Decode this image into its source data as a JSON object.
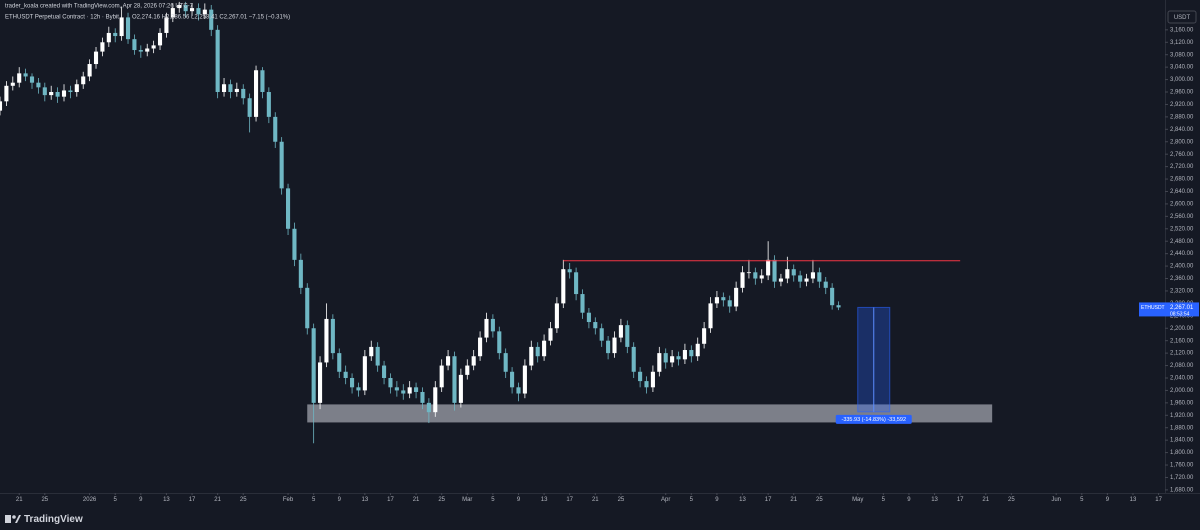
{
  "header": {
    "author_line": "trader_koala created with TradingView.com, Apr 28, 2026 07:26 UTC-7",
    "symbol_line": "ETHUSDT Perpetual Contract · 12h · Bybit",
    "ohlc_line": "O2,274.16 H2,286.56 L2,258.41 C2,267.01 −7.15 (−0.31%)"
  },
  "footer": {
    "brand": "TradingView"
  },
  "chart_data": {
    "type": "candlestick",
    "currency": "USDT",
    "up_color": "#ffffff",
    "down_color": "#6fb7c4",
    "grid": false,
    "xlim": [
      "2025-12-18",
      "2026-06-18"
    ],
    "ylim": [
      1670,
      3256
    ],
    "x": [
      "2025-12-18",
      "2025-12-19",
      "2025-12-20",
      "2025-12-21",
      "2025-12-22",
      "2025-12-23",
      "2025-12-24",
      "2025-12-25",
      "2025-12-26",
      "2025-12-27",
      "2025-12-28",
      "2025-12-29",
      "2025-12-30",
      "2025-12-31",
      "2026-01-01",
      "2026-01-02",
      "2026-01-03",
      "2026-01-04",
      "2026-01-05",
      "2026-01-06",
      "2026-01-07",
      "2026-01-08",
      "2026-01-09",
      "2026-01-10",
      "2026-01-11",
      "2026-01-12",
      "2026-01-13",
      "2026-01-14",
      "2026-01-15",
      "2026-01-16",
      "2026-01-17",
      "2026-01-18",
      "2026-01-19",
      "2026-01-20",
      "2026-01-21",
      "2026-01-22",
      "2026-01-23",
      "2026-01-24",
      "2026-01-25",
      "2026-01-26",
      "2026-01-27",
      "2026-01-28",
      "2026-01-29",
      "2026-01-30",
      "2026-01-31",
      "2026-02-01",
      "2026-02-02",
      "2026-02-03",
      "2026-02-04",
      "2026-02-05",
      "2026-02-06",
      "2026-02-07",
      "2026-02-08",
      "2026-02-09",
      "2026-02-10",
      "2026-02-11",
      "2026-02-12",
      "2026-02-13",
      "2026-02-14",
      "2026-02-15",
      "2026-02-16",
      "2026-02-17",
      "2026-02-18",
      "2026-02-19",
      "2026-02-20",
      "2026-02-21",
      "2026-02-22",
      "2026-02-23",
      "2026-02-24",
      "2026-02-25",
      "2026-02-26",
      "2026-02-27",
      "2026-02-28",
      "2026-03-01",
      "2026-03-02",
      "2026-03-03",
      "2026-03-04",
      "2026-03-05",
      "2026-03-06",
      "2026-03-07",
      "2026-03-08",
      "2026-03-09",
      "2026-03-10",
      "2026-03-11",
      "2026-03-12",
      "2026-03-13",
      "2026-03-14",
      "2026-03-15",
      "2026-03-16",
      "2026-03-17",
      "2026-03-18",
      "2026-03-19",
      "2026-03-20",
      "2026-03-21",
      "2026-03-22",
      "2026-03-23",
      "2026-03-24",
      "2026-03-25",
      "2026-03-26",
      "2026-03-27",
      "2026-03-28",
      "2026-03-29",
      "2026-03-30",
      "2026-03-31",
      "2026-04-01",
      "2026-04-02",
      "2026-04-03",
      "2026-04-04",
      "2026-04-05",
      "2026-04-06",
      "2026-04-07",
      "2026-04-08",
      "2026-04-09",
      "2026-04-10",
      "2026-04-11",
      "2026-04-12",
      "2026-04-13",
      "2026-04-14",
      "2026-04-15",
      "2026-04-16",
      "2026-04-17",
      "2026-04-18",
      "2026-04-19",
      "2026-04-20",
      "2026-04-21",
      "2026-04-22",
      "2026-04-23",
      "2026-04-24",
      "2026-04-25",
      "2026-04-26",
      "2026-04-27",
      "2026-04-28"
    ],
    "open": [
      2900,
      2930,
      2980,
      2990,
      3020,
      3010,
      2990,
      2975,
      2950,
      2960,
      2945,
      2965,
      2960,
      2985,
      3010,
      3050,
      3090,
      3120,
      3150,
      3140,
      3200,
      3130,
      3095,
      3090,
      3100,
      3110,
      3150,
      3200,
      3230,
      3240,
      3220,
      3230,
      3210,
      3225,
      3160,
      2960,
      2985,
      2960,
      2970,
      2940,
      2880,
      3030,
      2960,
      2880,
      2800,
      2650,
      2520,
      2420,
      2330,
      2200,
      1960,
      2090,
      2230,
      2120,
      2060,
      2040,
      2010,
      2000,
      2110,
      2140,
      2080,
      2040,
      2010,
      2000,
      1990,
      2010,
      1995,
      1960,
      1930,
      2010,
      2080,
      2110,
      1960,
      2050,
      2080,
      2110,
      2170,
      2230,
      2190,
      2120,
      2060,
      2010,
      1990,
      2080,
      2140,
      2110,
      2160,
      2200,
      2280,
      2390,
      2380,
      2310,
      2250,
      2220,
      2200,
      2160,
      2120,
      2170,
      2210,
      2140,
      2060,
      2030,
      2010,
      2060,
      2120,
      2090,
      2110,
      2100,
      2130,
      2110,
      2150,
      2200,
      2280,
      2300,
      2290,
      2270,
      2330,
      2380,
      2380,
      2360,
      2370,
      2420,
      2350,
      2360,
      2390,
      2370,
      2350,
      2360,
      2380,
      2350,
      2330,
      2274.16
    ],
    "high": [
      2945,
      2995,
      3010,
      3040,
      3035,
      3020,
      3005,
      2990,
      2980,
      2975,
      2985,
      2980,
      3000,
      3025,
      3065,
      3105,
      3135,
      3170,
      3165,
      3235,
      3215,
      3145,
      3110,
      3115,
      3125,
      3165,
      3215,
      3245,
      3250,
      3250,
      3245,
      3245,
      3245,
      3240,
      3175,
      3005,
      3000,
      2990,
      2985,
      2955,
      3045,
      3040,
      2975,
      2895,
      2815,
      2665,
      2540,
      2440,
      2345,
      2215,
      2110,
      2280,
      2245,
      2135,
      2080,
      2055,
      2025,
      2130,
      2160,
      2155,
      2095,
      2055,
      2030,
      2020,
      2030,
      2025,
      2010,
      1975,
      2030,
      2100,
      2130,
      2125,
      2070,
      2100,
      2130,
      2190,
      2250,
      2245,
      2205,
      2135,
      2075,
      2025,
      2100,
      2160,
      2155,
      2180,
      2220,
      2300,
      2420,
      2410,
      2395,
      2325,
      2265,
      2235,
      2215,
      2175,
      2190,
      2230,
      2225,
      2155,
      2075,
      2045,
      2080,
      2140,
      2135,
      2130,
      2125,
      2150,
      2145,
      2170,
      2220,
      2300,
      2320,
      2315,
      2305,
      2350,
      2400,
      2420,
      2395,
      2390,
      2480,
      2435,
      2375,
      2430,
      2405,
      2385,
      2375,
      2420,
      2395,
      2365,
      2345,
      2286.56
    ],
    "low": [
      2885,
      2915,
      2965,
      2975,
      2995,
      2970,
      2955,
      2930,
      2935,
      2925,
      2930,
      2940,
      2945,
      2970,
      2995,
      3035,
      3075,
      3105,
      3120,
      3125,
      3115,
      3080,
      3070,
      3075,
      3085,
      3095,
      3135,
      3185,
      3215,
      3200,
      3205,
      3190,
      3195,
      3140,
      2940,
      2945,
      2940,
      2945,
      2920,
      2830,
      2865,
      2940,
      2860,
      2780,
      2630,
      2500,
      2400,
      2310,
      2180,
      1830,
      1940,
      2075,
      2100,
      2040,
      2020,
      1990,
      1980,
      1985,
      2095,
      2060,
      2020,
      1990,
      1980,
      1970,
      1975,
      1975,
      1940,
      1895,
      1915,
      1995,
      2065,
      1935,
      1945,
      2035,
      2065,
      2095,
      2155,
      2170,
      2100,
      2040,
      1990,
      1965,
      1975,
      2065,
      2090,
      2095,
      2145,
      2185,
      2265,
      2360,
      2290,
      2230,
      2200,
      2180,
      2140,
      2100,
      2105,
      2155,
      2120,
      2040,
      2010,
      1990,
      1995,
      2045,
      2070,
      2075,
      2080,
      2085,
      2090,
      2095,
      2135,
      2185,
      2265,
      2270,
      2250,
      2255,
      2315,
      2360,
      2340,
      2345,
      2355,
      2330,
      2335,
      2345,
      2350,
      2330,
      2335,
      2345,
      2330,
      2310,
      2260,
      2258.41
    ],
    "close": [
      2930,
      2980,
      2990,
      3020,
      3010,
      2990,
      2975,
      2950,
      2960,
      2945,
      2965,
      2960,
      2985,
      3010,
      3050,
      3090,
      3120,
      3150,
      3140,
      3200,
      3130,
      3095,
      3090,
      3100,
      3110,
      3150,
      3200,
      3230,
      3240,
      3220,
      3230,
      3210,
      3225,
      3160,
      2960,
      2985,
      2960,
      2970,
      2940,
      2880,
      3030,
      2960,
      2880,
      2800,
      2650,
      2520,
      2420,
      2330,
      2200,
      1960,
      2090,
      2230,
      2120,
      2060,
      2040,
      2010,
      2000,
      2110,
      2140,
      2080,
      2040,
      2010,
      2000,
      1990,
      2010,
      1995,
      1960,
      1930,
      2010,
      2080,
      2110,
      1960,
      2050,
      2080,
      2110,
      2170,
      2230,
      2190,
      2120,
      2060,
      2010,
      1990,
      2080,
      2140,
      2110,
      2160,
      2200,
      2280,
      2390,
      2380,
      2310,
      2250,
      2220,
      2200,
      2160,
      2120,
      2170,
      2210,
      2140,
      2060,
      2030,
      2010,
      2060,
      2120,
      2090,
      2110,
      2100,
      2130,
      2110,
      2150,
      2200,
      2280,
      2300,
      2290,
      2270,
      2330,
      2380,
      2380,
      2360,
      2370,
      2420,
      2350,
      2360,
      2390,
      2370,
      2350,
      2360,
      2380,
      2350,
      2330,
      2274.16,
      2267.01
    ],
    "xticks": [
      {
        "value": "2025-12-21",
        "label": "21"
      },
      {
        "value": "2025-12-25",
        "label": "25"
      },
      {
        "value": "2026-01-01",
        "label": "2026"
      },
      {
        "value": "2026-01-05",
        "label": "5"
      },
      {
        "value": "2026-01-09",
        "label": "9"
      },
      {
        "value": "2026-01-13",
        "label": "13"
      },
      {
        "value": "2026-01-17",
        "label": "17"
      },
      {
        "value": "2026-01-21",
        "label": "21"
      },
      {
        "value": "2026-01-25",
        "label": "25"
      },
      {
        "value": "2026-02-01",
        "label": "Feb"
      },
      {
        "value": "2026-02-05",
        "label": "5"
      },
      {
        "value": "2026-02-09",
        "label": "9"
      },
      {
        "value": "2026-02-13",
        "label": "13"
      },
      {
        "value": "2026-02-17",
        "label": "17"
      },
      {
        "value": "2026-02-21",
        "label": "21"
      },
      {
        "value": "2026-02-25",
        "label": "25"
      },
      {
        "value": "2026-03-01",
        "label": "Mar"
      },
      {
        "value": "2026-03-05",
        "label": "5"
      },
      {
        "value": "2026-03-09",
        "label": "9"
      },
      {
        "value": "2026-03-13",
        "label": "13"
      },
      {
        "value": "2026-03-17",
        "label": "17"
      },
      {
        "value": "2026-03-21",
        "label": "21"
      },
      {
        "value": "2026-03-25",
        "label": "25"
      },
      {
        "value": "2026-04-01",
        "label": "Apr"
      },
      {
        "value": "2026-04-05",
        "label": "5"
      },
      {
        "value": "2026-04-09",
        "label": "9"
      },
      {
        "value": "2026-04-13",
        "label": "13"
      },
      {
        "value": "2026-04-17",
        "label": "17"
      },
      {
        "value": "2026-04-21",
        "label": "21"
      },
      {
        "value": "2026-04-25",
        "label": "25"
      },
      {
        "value": "2026-05-01",
        "label": "May"
      },
      {
        "value": "2026-05-05",
        "label": "5"
      },
      {
        "value": "2026-05-09",
        "label": "9"
      },
      {
        "value": "2026-05-13",
        "label": "13"
      },
      {
        "value": "2026-05-17",
        "label": "17"
      },
      {
        "value": "2026-05-21",
        "label": "21"
      },
      {
        "value": "2026-05-25",
        "label": "25"
      },
      {
        "value": "2026-06-01",
        "label": "Jun"
      },
      {
        "value": "2026-06-05",
        "label": "5"
      },
      {
        "value": "2026-06-09",
        "label": "9"
      },
      {
        "value": "2026-06-13",
        "label": "13"
      },
      {
        "value": "2026-06-17",
        "label": "17"
      }
    ],
    "yticks": [
      {
        "value": 3160,
        "label": "3,160.00"
      },
      {
        "value": 3120,
        "label": "3,120.00"
      },
      {
        "value": 3080,
        "label": "3,080.00"
      },
      {
        "value": 3040,
        "label": "3,040.00"
      },
      {
        "value": 3000,
        "label": "3,000.00"
      },
      {
        "value": 2960,
        "label": "2,960.00"
      },
      {
        "value": 2920,
        "label": "2,920.00"
      },
      {
        "value": 2880,
        "label": "2,880.00"
      },
      {
        "value": 2840,
        "label": "2,840.00"
      },
      {
        "value": 2800,
        "label": "2,800.00"
      },
      {
        "value": 2760,
        "label": "2,760.00"
      },
      {
        "value": 2720,
        "label": "2,720.00"
      },
      {
        "value": 2680,
        "label": "2,680.00"
      },
      {
        "value": 2640,
        "label": "2,640.00"
      },
      {
        "value": 2600,
        "label": "2,600.00"
      },
      {
        "value": 2560,
        "label": "2,560.00"
      },
      {
        "value": 2520,
        "label": "2,520.00"
      },
      {
        "value": 2480,
        "label": "2,480.00"
      },
      {
        "value": 2440,
        "label": "2,440.00"
      },
      {
        "value": 2400,
        "label": "2,400.00"
      },
      {
        "value": 2360,
        "label": "2,360.00"
      },
      {
        "value": 2320,
        "label": "2,320.00"
      },
      {
        "value": 2280,
        "label": "2,280.00"
      },
      {
        "value": 2240,
        "label": "2,240.00"
      },
      {
        "value": 2200,
        "label": "2,200.00"
      },
      {
        "value": 2160,
        "label": "2,160.00"
      },
      {
        "value": 2120,
        "label": "2,120.00"
      },
      {
        "value": 2080,
        "label": "2,080.00"
      },
      {
        "value": 2040,
        "label": "2,040.00"
      },
      {
        "value": 2000,
        "label": "2,000.00"
      },
      {
        "value": 1960,
        "label": "1,960.00"
      },
      {
        "value": 1920,
        "label": "1,920.00"
      },
      {
        "value": 1880,
        "label": "1,880.00"
      },
      {
        "value": 1840,
        "label": "1,840.00"
      },
      {
        "value": 1800,
        "label": "1,800.00"
      },
      {
        "value": 1760,
        "label": "1,760.00"
      },
      {
        "value": 1720,
        "label": "1,720.00"
      },
      {
        "value": 1680,
        "label": "1,680.00"
      }
    ],
    "last_price": {
      "symbol": "ETHUSDT",
      "value": 2267.01,
      "label": "2,267.01",
      "countdown": "08:53:54",
      "color": "#2962ff"
    },
    "resistance": {
      "value": 2417,
      "from": "2026-03-16",
      "to": "2026-05-17",
      "color": "#f23645"
    },
    "zone": {
      "low": 1897,
      "high": 1955,
      "from": "2026-02-04",
      "to": "2026-05-22",
      "color": "#d1d4dc"
    },
    "measure": {
      "from": 2267.01,
      "change": -335.93,
      "start": "2026-05-01",
      "end": "2026-05-06",
      "label": "-335.93 (-14.83%) -33,592",
      "color": "#2962ff"
    }
  }
}
